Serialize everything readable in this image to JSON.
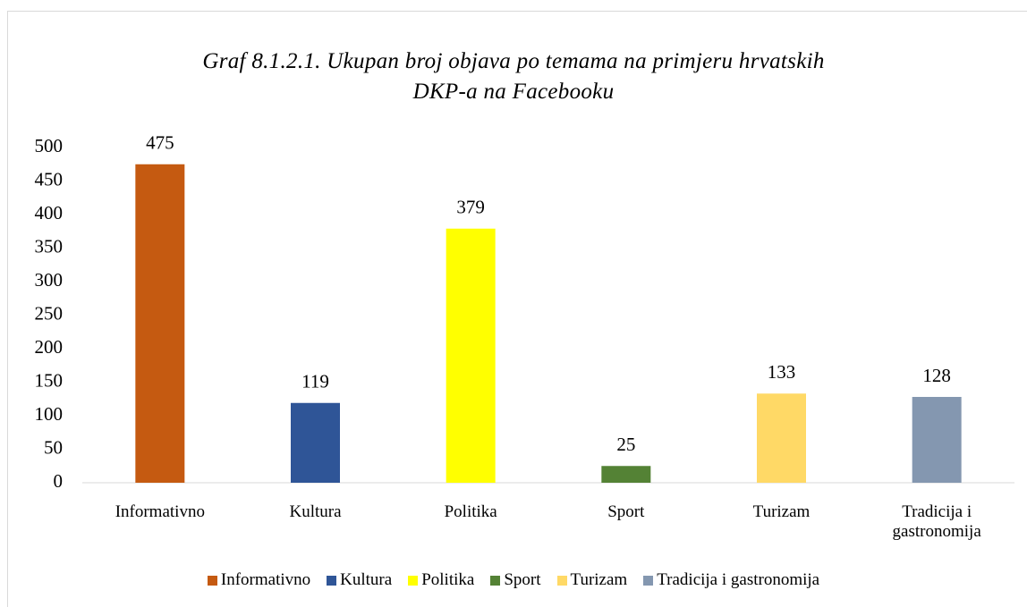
{
  "chart_data": {
    "type": "bar",
    "title": "Graf 8.1.2.1. Ukupan broj objava po temama na primjeru hrvatskih DKP-a na Facebooku",
    "categories": [
      "Informativno",
      "Kultura",
      "Politika",
      "Sport",
      "Turizam",
      "Tradicija i gastronomija"
    ],
    "values": [
      475,
      119,
      379,
      25,
      133,
      128
    ],
    "colors": [
      "#c55a11",
      "#2f5597",
      "#ffff00",
      "#548235",
      "#ffd966",
      "#8497b0"
    ],
    "ylim": [
      0,
      500
    ],
    "yticks": [
      0,
      50,
      100,
      150,
      200,
      250,
      300,
      350,
      400,
      450,
      500
    ],
    "grid": false,
    "legend": "bottom"
  }
}
